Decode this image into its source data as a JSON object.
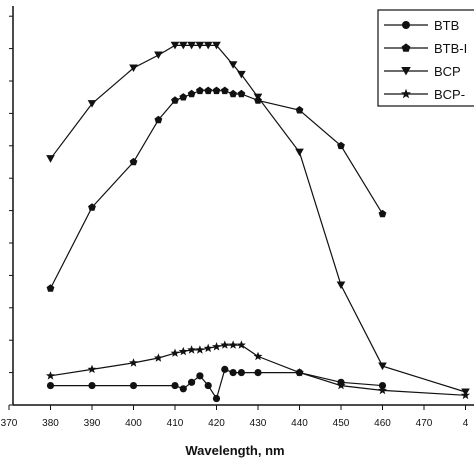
{
  "chart_data": {
    "type": "line",
    "xlabel": "Wavelength, nm",
    "ylabel": "",
    "xlim": [
      370,
      480
    ],
    "x_ticks": [
      "370",
      "380",
      "390",
      "400",
      "410",
      "420",
      "430",
      "440",
      "450",
      "460",
      "470",
      "4"
    ],
    "grid": false,
    "legend_position": "top-right",
    "series": [
      {
        "name": "BTB",
        "marker": "circle",
        "color": "#111111",
        "points": [
          [
            380,
            0.6
          ],
          [
            390,
            0.6
          ],
          [
            400,
            0.6
          ],
          [
            410,
            0.6
          ],
          [
            412,
            0.5
          ],
          [
            414,
            0.7
          ],
          [
            416,
            0.9
          ],
          [
            418,
            0.6
          ],
          [
            420,
            0.2
          ],
          [
            422,
            1.1
          ],
          [
            424,
            1.0
          ],
          [
            426,
            1.0
          ],
          [
            430,
            1.0
          ],
          [
            440,
            1.0
          ],
          [
            450,
            0.7
          ],
          [
            460,
            0.6
          ]
        ]
      },
      {
        "name": "BTB-I",
        "marker": "pentagon",
        "color": "#111111",
        "points": [
          [
            380,
            3.6
          ],
          [
            390,
            6.1
          ],
          [
            400,
            7.5
          ],
          [
            406,
            8.8
          ],
          [
            410,
            9.4
          ],
          [
            412,
            9.5
          ],
          [
            414,
            9.6
          ],
          [
            416,
            9.7
          ],
          [
            418,
            9.7
          ],
          [
            420,
            9.7
          ],
          [
            422,
            9.7
          ],
          [
            424,
            9.6
          ],
          [
            426,
            9.6
          ],
          [
            430,
            9.4
          ],
          [
            440,
            9.1
          ],
          [
            450,
            8.0
          ],
          [
            460,
            5.9
          ]
        ]
      },
      {
        "name": "BCP",
        "marker": "triangle-down",
        "color": "#111111",
        "points": [
          [
            380,
            7.6
          ],
          [
            390,
            9.3
          ],
          [
            400,
            10.4
          ],
          [
            406,
            10.8
          ],
          [
            410,
            11.1
          ],
          [
            412,
            11.1
          ],
          [
            414,
            11.1
          ],
          [
            416,
            11.1
          ],
          [
            418,
            11.1
          ],
          [
            420,
            11.1
          ],
          [
            424,
            10.5
          ],
          [
            426,
            10.2
          ],
          [
            430,
            9.5
          ],
          [
            440,
            7.8
          ],
          [
            450,
            3.7
          ],
          [
            460,
            1.2
          ],
          [
            480,
            0.4
          ]
        ]
      },
      {
        "name": "BCP-",
        "marker": "star",
        "color": "#111111",
        "points": [
          [
            380,
            0.9
          ],
          [
            390,
            1.1
          ],
          [
            400,
            1.3
          ],
          [
            406,
            1.45
          ],
          [
            410,
            1.6
          ],
          [
            412,
            1.65
          ],
          [
            414,
            1.7
          ],
          [
            416,
            1.7
          ],
          [
            418,
            1.75
          ],
          [
            420,
            1.8
          ],
          [
            422,
            1.85
          ],
          [
            424,
            1.85
          ],
          [
            426,
            1.85
          ],
          [
            430,
            1.5
          ],
          [
            440,
            1.0
          ],
          [
            450,
            0.6
          ],
          [
            460,
            0.45
          ],
          [
            480,
            0.3
          ]
        ]
      }
    ]
  }
}
